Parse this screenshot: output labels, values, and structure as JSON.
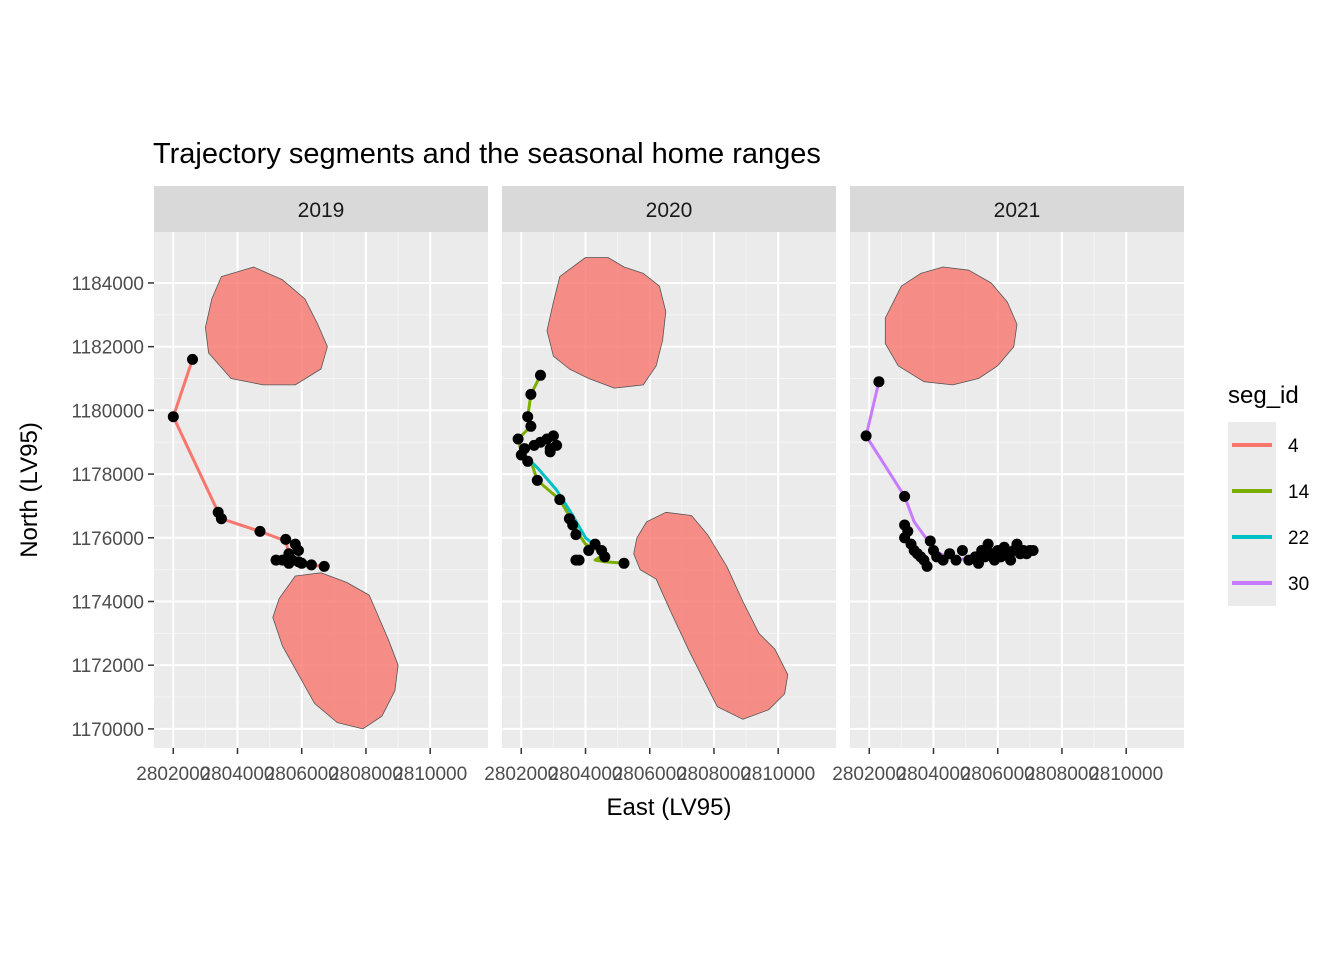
{
  "chart_data": {
    "type": "faceted-map",
    "title": "Trajectory segments and the seasonal home ranges",
    "xlabel": "East (LV95)",
    "ylabel": "North (LV95)",
    "xlim": [
      2801400,
      2811800
    ],
    "ylim": [
      1169400,
      1185600
    ],
    "x_ticks": [
      2802000,
      2804000,
      2806000,
      2808000,
      2810000
    ],
    "x_tick_labels": [
      "2802000",
      "2804000",
      "2806000",
      "2808000",
      "2810000"
    ],
    "y_ticks": [
      1170000,
      1172000,
      1174000,
      1176000,
      1178000,
      1180000,
      1182000,
      1184000
    ],
    "y_tick_labels": [
      "1170000",
      "1172000",
      "1174000",
      "1176000",
      "1178000",
      "1180000",
      "1182000",
      "1184000"
    ],
    "legend": {
      "title": "seg_id",
      "position": "right",
      "items": [
        {
          "label": "4",
          "color": "#F8766D"
        },
        {
          "label": "14",
          "color": "#7CAE00"
        },
        {
          "label": "22",
          "color": "#00BFC4"
        },
        {
          "label": "30",
          "color": "#C77CFF"
        }
      ]
    },
    "home_range_color": "#F8766D",
    "point_color": "#000000",
    "facets": [
      {
        "label": "2019",
        "home_ranges": [
          [
            [
              2803500,
              1184200
            ],
            [
              2804500,
              1184500
            ],
            [
              2805400,
              1184100
            ],
            [
              2806100,
              1183500
            ],
            [
              2806500,
              1182700
            ],
            [
              2806800,
              1182000
            ],
            [
              2806600,
              1181300
            ],
            [
              2805800,
              1180800
            ],
            [
              2804800,
              1180800
            ],
            [
              2803800,
              1181000
            ],
            [
              2803100,
              1181800
            ],
            [
              2803000,
              1182600
            ],
            [
              2803200,
              1183500
            ]
          ],
          [
            [
              2805300,
              1174100
            ],
            [
              2805800,
              1174800
            ],
            [
              2806600,
              1174900
            ],
            [
              2807400,
              1174600
            ],
            [
              2808100,
              1174200
            ],
            [
              2808400,
              1173500
            ],
            [
              2808700,
              1172800
            ],
            [
              2809000,
              1172000
            ],
            [
              2808900,
              1171200
            ],
            [
              2808500,
              1170400
            ],
            [
              2807900,
              1170000
            ],
            [
              2807100,
              1170200
            ],
            [
              2806400,
              1170800
            ],
            [
              2805900,
              1171700
            ],
            [
              2805400,
              1172600
            ],
            [
              2805100,
              1173500
            ]
          ]
        ],
        "segments": [
          {
            "seg_id": "4",
            "points": [
              [
                2802600,
                1181600
              ],
              [
                2802000,
                1179800
              ],
              [
                2803400,
                1176800
              ],
              [
                2803500,
                1176600
              ],
              [
                2804700,
                1176200
              ],
              [
                2805500,
                1175900
              ],
              [
                2805600,
                1175500
              ],
              [
                2805700,
                1175400
              ],
              [
                2805900,
                1175200
              ],
              [
                2806200,
                1175150
              ],
              [
                2806700,
                1175100
              ]
            ]
          }
        ],
        "points": [
          [
            2802600,
            1181600
          ],
          [
            2802000,
            1179800
          ],
          [
            2803400,
            1176800
          ],
          [
            2803500,
            1176600
          ],
          [
            2804700,
            1176200
          ],
          [
            2805500,
            1175950
          ],
          [
            2805800,
            1175800
          ],
          [
            2805900,
            1175600
          ],
          [
            2805600,
            1175500
          ],
          [
            2805200,
            1175300
          ],
          [
            2805400,
            1175300
          ],
          [
            2805700,
            1175300
          ],
          [
            2805900,
            1175250
          ],
          [
            2805600,
            1175200
          ],
          [
            2806000,
            1175200
          ],
          [
            2806300,
            1175150
          ],
          [
            2806700,
            1175100
          ]
        ]
      },
      {
        "label": "2020",
        "home_ranges": [
          [
            [
              2803200,
              1184200
            ],
            [
              2804000,
              1184800
            ],
            [
              2804700,
              1184800
            ],
            [
              2805200,
              1184500
            ],
            [
              2805800,
              1184300
            ],
            [
              2806300,
              1183900
            ],
            [
              2806500,
              1183100
            ],
            [
              2806400,
              1182200
            ],
            [
              2806200,
              1181400
            ],
            [
              2805800,
              1180800
            ],
            [
              2804900,
              1180700
            ],
            [
              2804100,
              1181000
            ],
            [
              2803500,
              1181300
            ],
            [
              2803000,
              1181700
            ],
            [
              2802800,
              1182500
            ],
            [
              2803000,
              1183400
            ]
          ],
          [
            [
              2805900,
              1176500
            ],
            [
              2806500,
              1176800
            ],
            [
              2807300,
              1176700
            ],
            [
              2807800,
              1176100
            ],
            [
              2808400,
              1175100
            ],
            [
              2808900,
              1174000
            ],
            [
              2809400,
              1173000
            ],
            [
              2809900,
              1172500
            ],
            [
              2810300,
              1171700
            ],
            [
              2810200,
              1171100
            ],
            [
              2809700,
              1170600
            ],
            [
              2808900,
              1170300
            ],
            [
              2808100,
              1170700
            ],
            [
              2807700,
              1171500
            ],
            [
              2807200,
              1172500
            ],
            [
              2806600,
              1173800
            ],
            [
              2806200,
              1174700
            ],
            [
              2805700,
              1175000
            ],
            [
              2805500,
              1175500
            ],
            [
              2805600,
              1176000
            ]
          ]
        ],
        "segments": [
          {
            "seg_id": "14",
            "points": [
              [
                2802600,
                1181100
              ],
              [
                2802300,
                1180500
              ],
              [
                2802200,
                1179800
              ],
              [
                2802300,
                1179500
              ],
              [
                2801900,
                1179100
              ],
              [
                2802000,
                1178700
              ],
              [
                2802300,
                1178400
              ],
              [
                2802500,
                1177800
              ],
              [
                2803200,
                1177200
              ],
              [
                2803600,
                1176500
              ],
              [
                2803800,
                1176100
              ],
              [
                2804000,
                1175800
              ],
              [
                2804600,
                1175500
              ],
              [
                2804300,
                1175300
              ],
              [
                2804600,
                1175250
              ],
              [
                2805200,
                1175200
              ]
            ]
          },
          {
            "seg_id": "22",
            "points": [
              [
                2802000,
                1178700
              ],
              [
                2802500,
                1178200
              ],
              [
                2803100,
                1177500
              ],
              [
                2803600,
                1176700
              ],
              [
                2804000,
                1176000
              ],
              [
                2804500,
                1175600
              ]
            ]
          }
        ],
        "points": [
          [
            2802600,
            1181100
          ],
          [
            2802300,
            1180500
          ],
          [
            2802200,
            1179800
          ],
          [
            2802300,
            1179500
          ],
          [
            2801900,
            1179100
          ],
          [
            2802100,
            1178800
          ],
          [
            2802000,
            1178600
          ],
          [
            2802200,
            1178400
          ],
          [
            2802400,
            1178900
          ],
          [
            2802600,
            1179000
          ],
          [
            2802800,
            1179100
          ],
          [
            2802900,
            1178800
          ],
          [
            2803000,
            1179200
          ],
          [
            2803100,
            1178900
          ],
          [
            2802900,
            1178700
          ],
          [
            2802500,
            1177800
          ],
          [
            2803200,
            1177200
          ],
          [
            2803500,
            1176600
          ],
          [
            2803600,
            1176400
          ],
          [
            2803700,
            1176100
          ],
          [
            2803800,
            1175300
          ],
          [
            2803700,
            1175300
          ],
          [
            2804100,
            1175600
          ],
          [
            2804300,
            1175800
          ],
          [
            2804500,
            1175600
          ],
          [
            2804600,
            1175400
          ],
          [
            2805200,
            1175200
          ]
        ]
      },
      {
        "label": "2021",
        "home_ranges": [
          [
            [
              2803000,
              1183900
            ],
            [
              2803600,
              1184300
            ],
            [
              2804300,
              1184500
            ],
            [
              2805100,
              1184400
            ],
            [
              2805800,
              1184000
            ],
            [
              2806300,
              1183400
            ],
            [
              2806600,
              1182700
            ],
            [
              2806500,
              1182000
            ],
            [
              2806000,
              1181400
            ],
            [
              2805400,
              1181000
            ],
            [
              2804600,
              1180800
            ],
            [
              2803700,
              1180900
            ],
            [
              2802900,
              1181400
            ],
            [
              2802500,
              1182100
            ],
            [
              2802500,
              1182900
            ]
          ]
        ],
        "segments": [
          {
            "seg_id": "30",
            "points": [
              [
                2802300,
                1180900
              ],
              [
                2801900,
                1179200
              ],
              [
                2803100,
                1177300
              ],
              [
                2803400,
                1176500
              ],
              [
                2803900,
                1175800
              ],
              [
                2804200,
                1175500
              ],
              [
                2804700,
                1175300
              ],
              [
                2805300,
                1175400
              ],
              [
                2805700,
                1175600
              ],
              [
                2806000,
                1175600
              ],
              [
                2806500,
                1175500
              ],
              [
                2807100,
                1175600
              ]
            ]
          }
        ],
        "points": [
          [
            2802300,
            1180900
          ],
          [
            2801900,
            1179200
          ],
          [
            2803100,
            1177300
          ],
          [
            2803100,
            1176400
          ],
          [
            2803200,
            1176200
          ],
          [
            2803100,
            1176000
          ],
          [
            2803300,
            1175800
          ],
          [
            2803400,
            1175600
          ],
          [
            2803500,
            1175500
          ],
          [
            2803600,
            1175400
          ],
          [
            2803700,
            1175300
          ],
          [
            2803800,
            1175100
          ],
          [
            2803900,
            1175900
          ],
          [
            2804000,
            1175600
          ],
          [
            2804100,
            1175400
          ],
          [
            2804300,
            1175300
          ],
          [
            2804500,
            1175500
          ],
          [
            2804700,
            1175300
          ],
          [
            2804900,
            1175600
          ],
          [
            2805100,
            1175300
          ],
          [
            2805300,
            1175400
          ],
          [
            2805400,
            1175200
          ],
          [
            2805500,
            1175600
          ],
          [
            2805600,
            1175400
          ],
          [
            2805700,
            1175800
          ],
          [
            2805800,
            1175500
          ],
          [
            2805900,
            1175300
          ],
          [
            2806000,
            1175600
          ],
          [
            2806100,
            1175400
          ],
          [
            2806200,
            1175700
          ],
          [
            2806300,
            1175500
          ],
          [
            2806400,
            1175300
          ],
          [
            2806500,
            1175600
          ],
          [
            2806600,
            1175800
          ],
          [
            2806700,
            1175500
          ],
          [
            2806800,
            1175600
          ],
          [
            2806900,
            1175500
          ],
          [
            2807000,
            1175600
          ],
          [
            2807100,
            1175600
          ]
        ]
      }
    ]
  }
}
